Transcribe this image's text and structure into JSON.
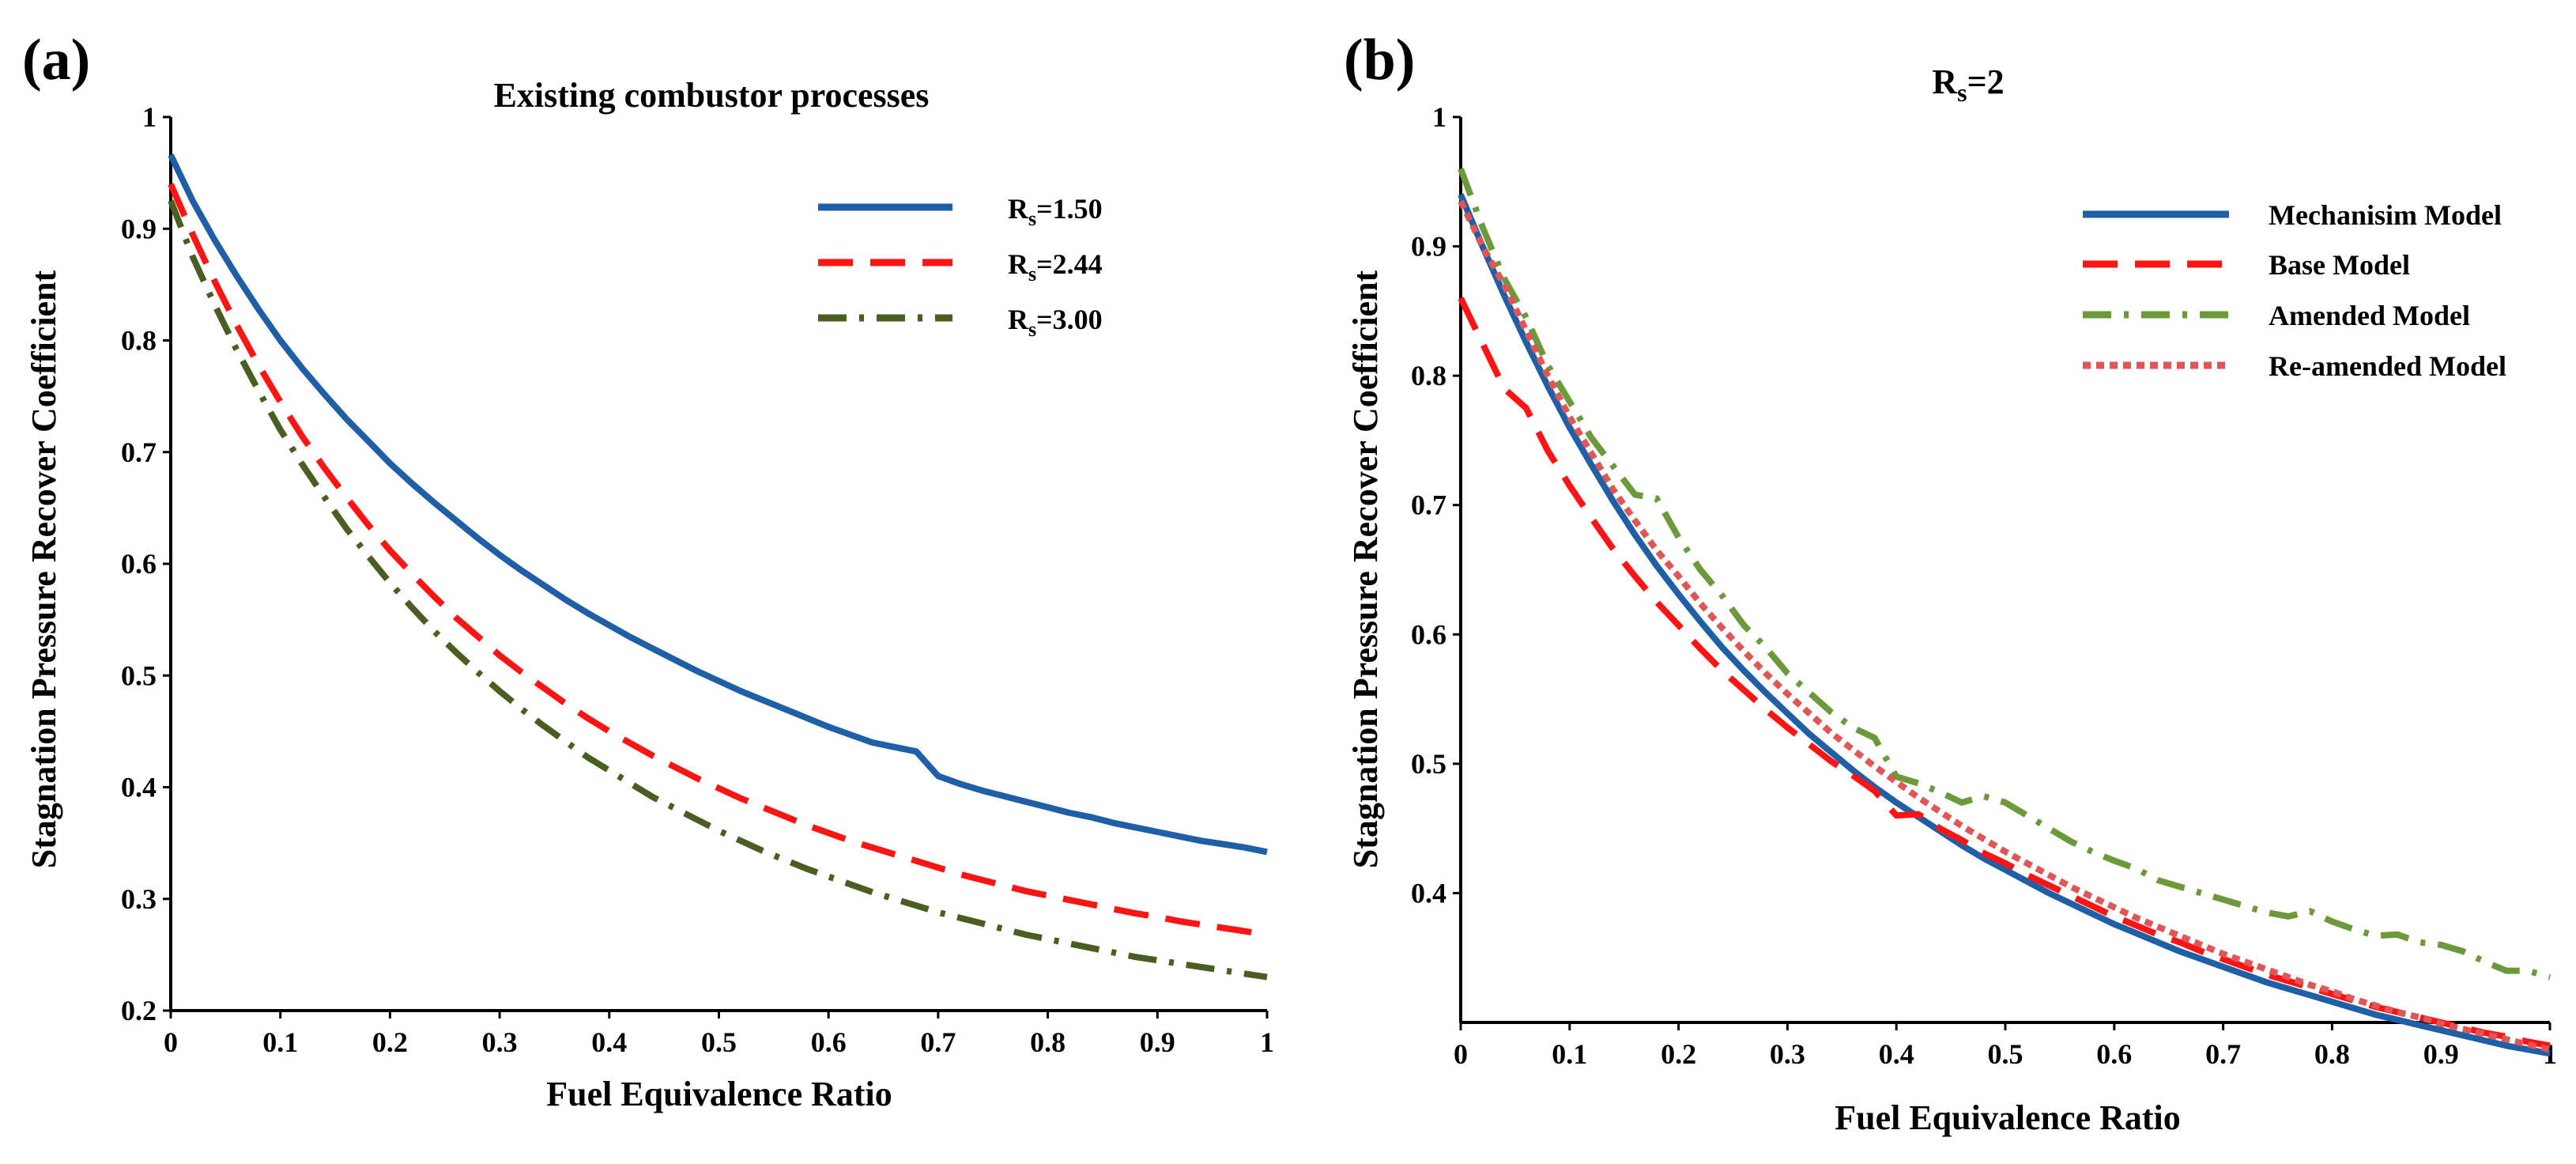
{
  "chart_data": [
    {
      "type": "line",
      "panel_label": "(a)",
      "title": "Existing combustor processes",
      "xlabel": "Fuel Equivalence Ratio",
      "ylabel": "Stagnation Pressure Recover Coefficient",
      "xlim": [
        0,
        1
      ],
      "ylim": [
        0.2,
        1
      ],
      "x_ticks": [
        "0",
        "0.1",
        "0.2",
        "0.3",
        "0.4",
        "0.5",
        "0.6",
        "0.7",
        "0.8",
        "0.9",
        "1"
      ],
      "y_ticks": [
        "0.2",
        "0.3",
        "0.4",
        "0.5",
        "0.6",
        "0.7",
        "0.8",
        "0.9",
        "1"
      ],
      "legend_position": "top-right",
      "series": [
        {
          "name": "Rs=1.50",
          "label_main": "R",
          "label_sub": "s",
          "label_rest": "=1.50",
          "color": "#1f5fa8",
          "style": "solid",
          "x": [
            0,
            0.02,
            0.04,
            0.06,
            0.08,
            0.1,
            0.12,
            0.14,
            0.16,
            0.18,
            0.2,
            0.22,
            0.24,
            0.26,
            0.28,
            0.3,
            0.32,
            0.34,
            0.36,
            0.38,
            0.4,
            0.42,
            0.44,
            0.46,
            0.48,
            0.5,
            0.52,
            0.54,
            0.56,
            0.58,
            0.6,
            0.62,
            0.64,
            0.66,
            0.68,
            0.7,
            0.72,
            0.74,
            0.76,
            0.78,
            0.8,
            0.82,
            0.84,
            0.86,
            0.88,
            0.9,
            0.92,
            0.94,
            0.96,
            0.98,
            1.0
          ],
          "values": [
            0.966,
            0.925,
            0.89,
            0.858,
            0.828,
            0.8,
            0.775,
            0.752,
            0.73,
            0.71,
            0.69,
            0.672,
            0.655,
            0.639,
            0.623,
            0.608,
            0.594,
            0.581,
            0.568,
            0.556,
            0.545,
            0.534,
            0.524,
            0.514,
            0.504,
            0.495,
            0.486,
            0.478,
            0.47,
            0.462,
            0.454,
            0.447,
            0.44,
            0.436,
            0.432,
            0.41,
            0.403,
            0.397,
            0.392,
            0.387,
            0.382,
            0.377,
            0.373,
            0.368,
            0.364,
            0.36,
            0.356,
            0.352,
            0.349,
            0.346,
            0.342
          ]
        },
        {
          "name": "Rs=2.44",
          "label_main": "R",
          "label_sub": "s",
          "label_rest": "=2.44",
          "color": "#ff1414",
          "style": "dashed",
          "x": [
            0,
            0.02,
            0.04,
            0.06,
            0.08,
            0.1,
            0.12,
            0.14,
            0.16,
            0.18,
            0.2,
            0.22,
            0.24,
            0.26,
            0.28,
            0.3,
            0.32,
            0.34,
            0.36,
            0.38,
            0.4,
            0.42,
            0.44,
            0.46,
            0.48,
            0.5,
            0.52,
            0.54,
            0.56,
            0.58,
            0.6,
            0.62,
            0.64,
            0.66,
            0.68,
            0.7,
            0.72,
            0.74,
            0.76,
            0.78,
            0.8,
            0.82,
            0.84,
            0.86,
            0.88,
            0.9,
            0.92,
            0.94,
            0.96,
            0.98,
            1.0
          ],
          "values": [
            0.94,
            0.895,
            0.853,
            0.814,
            0.778,
            0.745,
            0.714,
            0.686,
            0.66,
            0.635,
            0.612,
            0.591,
            0.571,
            0.552,
            0.535,
            0.518,
            0.503,
            0.489,
            0.475,
            0.462,
            0.45,
            0.439,
            0.428,
            0.418,
            0.408,
            0.399,
            0.39,
            0.382,
            0.374,
            0.366,
            0.359,
            0.352,
            0.346,
            0.34,
            0.334,
            0.328,
            0.322,
            0.317,
            0.312,
            0.307,
            0.303,
            0.299,
            0.295,
            0.291,
            0.287,
            0.284,
            0.28,
            0.277,
            0.274,
            0.271,
            0.268
          ]
        },
        {
          "name": "Rs=3.00",
          "label_main": "R",
          "label_sub": "s",
          "label_rest": "=3.00",
          "color": "#4a5e22",
          "style": "dashdot",
          "x": [
            0,
            0.02,
            0.04,
            0.06,
            0.08,
            0.1,
            0.12,
            0.14,
            0.16,
            0.18,
            0.2,
            0.22,
            0.24,
            0.26,
            0.28,
            0.3,
            0.32,
            0.34,
            0.36,
            0.38,
            0.4,
            0.42,
            0.44,
            0.46,
            0.48,
            0.5,
            0.52,
            0.54,
            0.56,
            0.58,
            0.6,
            0.62,
            0.64,
            0.66,
            0.68,
            0.7,
            0.72,
            0.74,
            0.76,
            0.78,
            0.8,
            0.82,
            0.84,
            0.86,
            0.88,
            0.9,
            0.92,
            0.94,
            0.96,
            0.98,
            1.0
          ],
          "values": [
            0.925,
            0.875,
            0.832,
            0.792,
            0.755,
            0.72,
            0.689,
            0.66,
            0.632,
            0.607,
            0.583,
            0.561,
            0.54,
            0.521,
            0.503,
            0.486,
            0.47,
            0.455,
            0.441,
            0.427,
            0.415,
            0.403,
            0.391,
            0.381,
            0.371,
            0.361,
            0.352,
            0.343,
            0.335,
            0.327,
            0.32,
            0.313,
            0.306,
            0.3,
            0.294,
            0.288,
            0.283,
            0.278,
            0.273,
            0.268,
            0.264,
            0.26,
            0.256,
            0.252,
            0.248,
            0.245,
            0.242,
            0.239,
            0.236,
            0.233,
            0.23
          ]
        }
      ]
    },
    {
      "type": "line",
      "panel_label": "(b)",
      "title_main": "R",
      "title_sub": "s",
      "title_rest": "=2",
      "xlabel": "Fuel Equivalence Ratio",
      "ylabel": "Stagnation Pressure Recover Coefficient",
      "xlim": [
        0,
        1
      ],
      "ylim": [
        0.3,
        1
      ],
      "x_ticks": [
        "0",
        "0.1",
        "0.2",
        "0.3",
        "0.4",
        "0.5",
        "0.6",
        "0.7",
        "0.8",
        "0.9",
        "1"
      ],
      "y_ticks": [
        "0.4",
        "0.5",
        "0.6",
        "0.7",
        "0.8",
        "0.9",
        "1"
      ],
      "legend_position": "top-right",
      "series": [
        {
          "name": "Mechanisim Model",
          "color": "#1f5fa8",
          "style": "solid",
          "x": [
            0,
            0.02,
            0.04,
            0.06,
            0.08,
            0.1,
            0.12,
            0.14,
            0.16,
            0.18,
            0.2,
            0.22,
            0.24,
            0.26,
            0.28,
            0.3,
            0.32,
            0.34,
            0.36,
            0.38,
            0.4,
            0.42,
            0.44,
            0.46,
            0.48,
            0.5,
            0.52,
            0.54,
            0.56,
            0.58,
            0.6,
            0.62,
            0.64,
            0.66,
            0.68,
            0.7,
            0.72,
            0.74,
            0.76,
            0.78,
            0.8,
            0.82,
            0.84,
            0.86,
            0.88,
            0.9,
            0.92,
            0.94,
            0.96,
            0.98,
            1.0
          ],
          "values": [
            0.94,
            0.9,
            0.862,
            0.826,
            0.792,
            0.76,
            0.731,
            0.703,
            0.677,
            0.653,
            0.631,
            0.61,
            0.59,
            0.572,
            0.555,
            0.539,
            0.523,
            0.509,
            0.495,
            0.482,
            0.47,
            0.459,
            0.448,
            0.437,
            0.427,
            0.418,
            0.409,
            0.4,
            0.392,
            0.384,
            0.376,
            0.369,
            0.362,
            0.355,
            0.349,
            0.343,
            0.337,
            0.331,
            0.326,
            0.321,
            0.316,
            0.311,
            0.306,
            0.302,
            0.298,
            0.294,
            0.29,
            0.286,
            0.282,
            0.279,
            0.276
          ]
        },
        {
          "name": "Base Model",
          "color": "#ff1414",
          "style": "dashed",
          "x": [
            0,
            0.02,
            0.04,
            0.06,
            0.08,
            0.1,
            0.12,
            0.14,
            0.16,
            0.18,
            0.2,
            0.22,
            0.24,
            0.26,
            0.28,
            0.3,
            0.32,
            0.34,
            0.36,
            0.38,
            0.4,
            0.42,
            0.44,
            0.46,
            0.48,
            0.5,
            0.52,
            0.54,
            0.56,
            0.58,
            0.6,
            0.62,
            0.64,
            0.66,
            0.68,
            0.7,
            0.72,
            0.74,
            0.76,
            0.78,
            0.8,
            0.82,
            0.84,
            0.86,
            0.88,
            0.9,
            0.92,
            0.94,
            0.96,
            0.98,
            1.0
          ],
          "values": [
            0.86,
            0.825,
            0.79,
            0.775,
            0.742,
            0.715,
            0.69,
            0.666,
            0.645,
            0.625,
            0.607,
            0.589,
            0.572,
            0.557,
            0.542,
            0.528,
            0.515,
            0.502,
            0.491,
            0.479,
            0.46,
            0.461,
            0.45,
            0.441,
            0.431,
            0.423,
            0.414,
            0.406,
            0.398,
            0.39,
            0.382,
            0.375,
            0.368,
            0.362,
            0.355,
            0.349,
            0.343,
            0.337,
            0.332,
            0.327,
            0.322,
            0.317,
            0.312,
            0.308,
            0.304,
            0.3,
            0.296,
            0.292,
            0.289,
            0.285,
            0.282
          ]
        },
        {
          "name": "Amended Model",
          "color": "#6c9a3a",
          "style": "dashdot",
          "x": [
            0,
            0.02,
            0.04,
            0.06,
            0.08,
            0.1,
            0.12,
            0.14,
            0.16,
            0.18,
            0.2,
            0.22,
            0.24,
            0.26,
            0.28,
            0.3,
            0.32,
            0.34,
            0.36,
            0.38,
            0.4,
            0.42,
            0.44,
            0.46,
            0.48,
            0.5,
            0.52,
            0.54,
            0.56,
            0.58,
            0.6,
            0.62,
            0.64,
            0.66,
            0.68,
            0.7,
            0.72,
            0.74,
            0.76,
            0.78,
            0.8,
            0.82,
            0.84,
            0.86,
            0.88,
            0.9,
            0.92,
            0.94,
            0.96,
            0.98,
            1.0
          ],
          "values": [
            0.96,
            0.915,
            0.875,
            0.845,
            0.808,
            0.78,
            0.752,
            0.73,
            0.708,
            0.705,
            0.675,
            0.65,
            0.63,
            0.607,
            0.59,
            0.57,
            0.555,
            0.54,
            0.528,
            0.52,
            0.49,
            0.485,
            0.478,
            0.47,
            0.475,
            0.47,
            0.46,
            0.45,
            0.44,
            0.432,
            0.425,
            0.419,
            0.41,
            0.405,
            0.4,
            0.395,
            0.39,
            0.385,
            0.382,
            0.386,
            0.378,
            0.372,
            0.367,
            0.368,
            0.362,
            0.36,
            0.355,
            0.347,
            0.34,
            0.34,
            0.335
          ]
        },
        {
          "name": "Re-amended Model",
          "color": "#e05555",
          "style": "dotted",
          "x": [
            0,
            0.02,
            0.04,
            0.06,
            0.08,
            0.1,
            0.12,
            0.14,
            0.16,
            0.18,
            0.2,
            0.22,
            0.24,
            0.26,
            0.28,
            0.3,
            0.32,
            0.34,
            0.36,
            0.38,
            0.4,
            0.42,
            0.44,
            0.46,
            0.48,
            0.5,
            0.52,
            0.54,
            0.56,
            0.58,
            0.6,
            0.62,
            0.64,
            0.66,
            0.68,
            0.7,
            0.72,
            0.74,
            0.76,
            0.78,
            0.8,
            0.82,
            0.84,
            0.86,
            0.88,
            0.9,
            0.92,
            0.94,
            0.96,
            0.98,
            1.0
          ],
          "values": [
            0.935,
            0.9,
            0.87,
            0.835,
            0.8,
            0.768,
            0.74,
            0.712,
            0.688,
            0.665,
            0.645,
            0.624,
            0.605,
            0.587,
            0.57,
            0.554,
            0.539,
            0.524,
            0.511,
            0.498,
            0.486,
            0.474,
            0.463,
            0.452,
            0.442,
            0.432,
            0.423,
            0.414,
            0.405,
            0.397,
            0.389,
            0.381,
            0.374,
            0.367,
            0.36,
            0.353,
            0.347,
            0.341,
            0.335,
            0.329,
            0.324,
            0.318,
            0.313,
            0.308,
            0.304,
            0.299,
            0.295,
            0.291,
            0.287,
            0.283,
            0.279
          ]
        }
      ]
    }
  ]
}
